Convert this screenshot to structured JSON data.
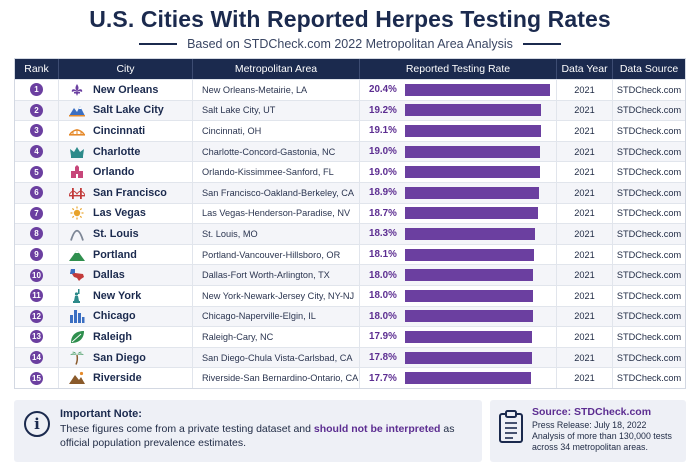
{
  "title": "U.S. Cities With Reported Herpes Testing Rates",
  "subtitle": "Based on STDCheck.com 2022 Metropolitan Area Analysis",
  "table": {
    "headers": [
      "Rank",
      "City",
      "Metropolitan Area",
      "Reported Testing Rate",
      "Data Year",
      "Data Source"
    ],
    "max_rate": 20.4,
    "rows": [
      {
        "rank": "1",
        "icon": "fleur-de-lis-icon",
        "city": "New Orleans",
        "metro": "New Orleans-Metairie, LA",
        "rate_label": "20.4%",
        "rate": 20.4,
        "year": "2021",
        "source": "STDCheck.com"
      },
      {
        "rank": "2",
        "icon": "mountains-icon",
        "city": "Salt Lake City",
        "metro": "Salt Lake City, UT",
        "rate_label": "19.2%",
        "rate": 19.2,
        "year": "2021",
        "source": "STDCheck.com"
      },
      {
        "rank": "3",
        "icon": "bridge-icon",
        "city": "Cincinnati",
        "metro": "Cincinnati, OH",
        "rate_label": "19.1%",
        "rate": 19.1,
        "year": "2021",
        "source": "STDCheck.com"
      },
      {
        "rank": "4",
        "icon": "crown-icon",
        "city": "Charlotte",
        "metro": "Charlotte-Concord-Gastonia, NC",
        "rate_label": "19.0%",
        "rate": 19.0,
        "year": "2021",
        "source": "STDCheck.com"
      },
      {
        "rank": "5",
        "icon": "castle-icon",
        "city": "Orlando",
        "metro": "Orlando-Kissimmee-Sanford, FL",
        "rate_label": "19.0%",
        "rate": 19.0,
        "year": "2021",
        "source": "STDCheck.com"
      },
      {
        "rank": "6",
        "icon": "golden-gate-icon",
        "city": "San Francisco",
        "metro": "San Francisco-Oakland-Berkeley, CA",
        "rate_label": "18.9%",
        "rate": 18.9,
        "year": "2021",
        "source": "STDCheck.com"
      },
      {
        "rank": "7",
        "icon": "sun-icon",
        "city": "Las Vegas",
        "metro": "Las Vegas-Henderson-Paradise, NV",
        "rate_label": "18.7%",
        "rate": 18.7,
        "year": "2021",
        "source": "STDCheck.com"
      },
      {
        "rank": "8",
        "icon": "arch-icon",
        "city": "St. Louis",
        "metro": "St. Louis, MO",
        "rate_label": "18.3%",
        "rate": 18.3,
        "year": "2021",
        "source": "STDCheck.com"
      },
      {
        "rank": "9",
        "icon": "mountain-icon",
        "city": "Portland",
        "metro": "Portland-Vancouver-Hillsboro, OR",
        "rate_label": "18.1%",
        "rate": 18.1,
        "year": "2021",
        "source": "STDCheck.com"
      },
      {
        "rank": "10",
        "icon": "texas-icon",
        "city": "Dallas",
        "metro": "Dallas-Fort Worth-Arlington, TX",
        "rate_label": "18.0%",
        "rate": 18.0,
        "year": "2021",
        "source": "STDCheck.com"
      },
      {
        "rank": "11",
        "icon": "statue-of-liberty-icon",
        "city": "New York",
        "metro": "New York-Newark-Jersey City, NY-NJ",
        "rate_label": "18.0%",
        "rate": 18.0,
        "year": "2021",
        "source": "STDCheck.com"
      },
      {
        "rank": "12",
        "icon": "skyline-icon",
        "city": "Chicago",
        "metro": "Chicago-Naperville-Elgin, IL",
        "rate_label": "18.0%",
        "rate": 18.0,
        "year": "2021",
        "source": "STDCheck.com"
      },
      {
        "rank": "13",
        "icon": "leaf-icon",
        "city": "Raleigh",
        "metro": "Raleigh-Cary, NC",
        "rate_label": "17.9%",
        "rate": 17.9,
        "year": "2021",
        "source": "STDCheck.com"
      },
      {
        "rank": "14",
        "icon": "palm-tree-icon",
        "city": "San Diego",
        "metro": "San Diego-Chula Vista-Carlsbad, CA",
        "rate_label": "17.8%",
        "rate": 17.8,
        "year": "2021",
        "source": "STDCheck.com"
      },
      {
        "rank": "15",
        "icon": "hills-icon",
        "city": "Riverside",
        "metro": "Riverside-San Bernardino-Ontario, CA",
        "rate_label": "17.7%",
        "rate": 17.7,
        "year": "2021",
        "source": "STDCheck.com"
      }
    ]
  },
  "note": {
    "title": "Important Note:",
    "text_1": "These figures come from a private testing dataset and ",
    "text_bold": "should not be interpreted",
    "text_2": " as official population prevalence estimates."
  },
  "source": {
    "title": "Source: STDCheck.com",
    "line_1": "Press Release: July 18, 2022",
    "line_2": "Analysis of more than 130,000 tests",
    "line_3": "across 34 metropolitan areas."
  },
  "colors": {
    "navy": "#1b2a4e",
    "purple": "#6b3fa0",
    "bar": "#6b3fa0"
  }
}
